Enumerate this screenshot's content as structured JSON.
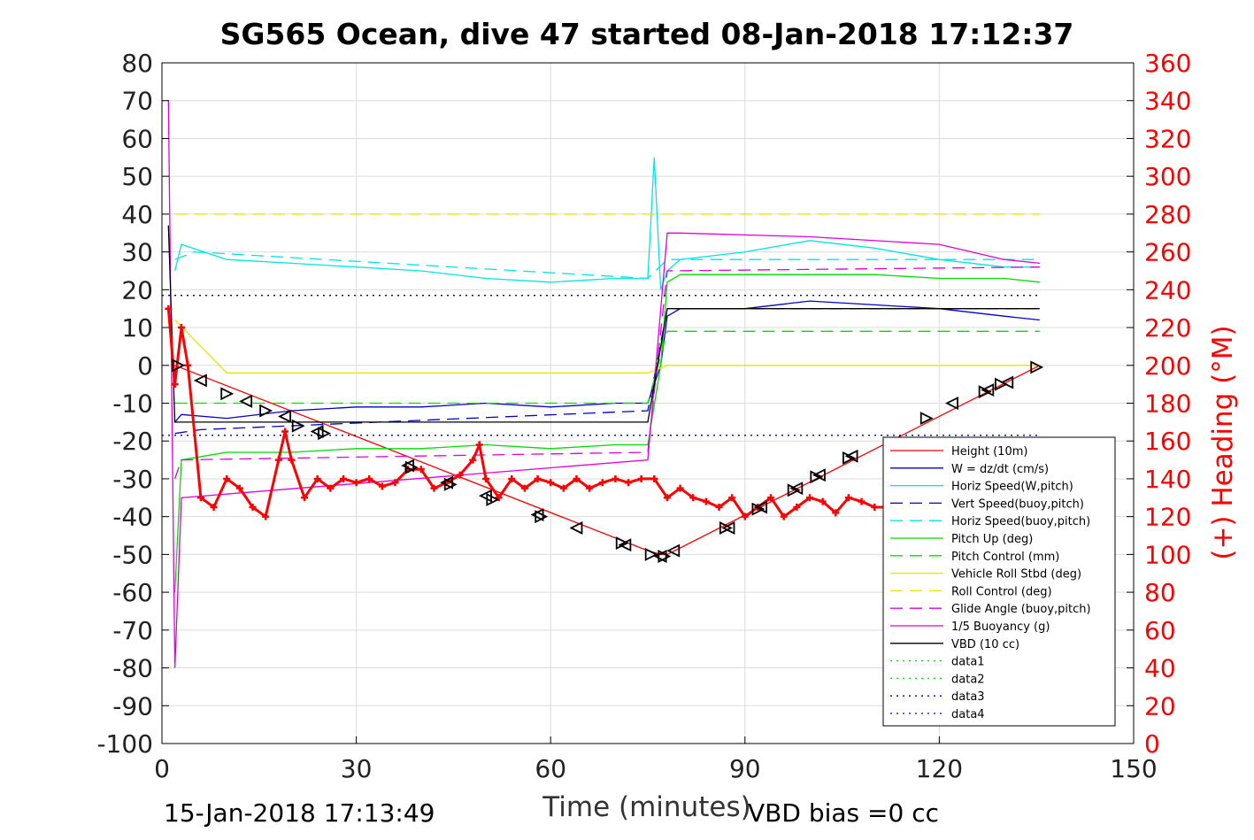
{
  "chart_data": {
    "type": "line",
    "title": "SG565 Ocean, dive 47 started 08-Jan-2018 17:12:37",
    "xlabel": "Time (minutes)",
    "ylabel_right": "(+) Heading (°M)",
    "footer_left": "15-Jan-2018 17:13:49",
    "footer_right": "VBD bias =0 cc",
    "xlim": [
      0,
      150
    ],
    "ylim_left": [
      -100,
      80
    ],
    "ylim_right": [
      0,
      360
    ],
    "xticks": [
      0,
      30,
      60,
      90,
      120,
      150
    ],
    "yticks_left": [
      80,
      70,
      60,
      50,
      40,
      30,
      20,
      10,
      0,
      -10,
      -20,
      -30,
      -40,
      -50,
      -60,
      -70,
      -80,
      -90,
      -100
    ],
    "yticks_right": [
      360,
      340,
      320,
      300,
      280,
      260,
      240,
      220,
      200,
      180,
      160,
      140,
      120,
      100,
      80,
      60,
      40,
      20,
      0
    ],
    "grid": true,
    "legend_position": "bottom-right",
    "legend": [
      {
        "name": "Height (10m)",
        "color": "#ff0000",
        "style": "solid"
      },
      {
        "name": "W = dz/dt (cm/s)",
        "color": "#0000cc",
        "style": "solid"
      },
      {
        "name": "Horiz Speed(W,pitch)",
        "color": "#00e5e5",
        "style": "solid"
      },
      {
        "name": "Vert Speed(buoy,pitch)",
        "color": "#0000cc",
        "style": "dashed"
      },
      {
        "name": "Horiz Speed(buoy,pitch)",
        "color": "#00e5e5",
        "style": "dashed"
      },
      {
        "name": "Pitch Up (deg)",
        "color": "#00dd00",
        "style": "solid"
      },
      {
        "name": "Pitch Control (mm)",
        "color": "#00dd00",
        "style": "dashed"
      },
      {
        "name": "Vehicle Roll Stbd (deg)",
        "color": "#e5e500",
        "style": "solid"
      },
      {
        "name": "Roll Control (deg)",
        "color": "#e5e500",
        "style": "dashed"
      },
      {
        "name": "Glide Angle (buoy,pitch)",
        "color": "#dd00dd",
        "style": "dashed"
      },
      {
        "name": "1/5 Buoyancy (g)",
        "color": "#dd00dd",
        "style": "solid"
      },
      {
        "name": "VBD (10 cc)",
        "color": "#000000",
        "style": "solid"
      },
      {
        "name": "data1",
        "color": "#00dd00",
        "style": "dotted"
      },
      {
        "name": "data2",
        "color": "#00dd00",
        "style": "dotted"
      },
      {
        "name": "data3",
        "color": "#000088",
        "style": "dotted"
      },
      {
        "name": "data4",
        "color": "#0000cc",
        "style": "dotted"
      }
    ],
    "series": [
      {
        "name": "Height (10m)",
        "axis": "left",
        "x": [
          2,
          75,
          77,
          78,
          135.5
        ],
        "y": [
          0,
          -49,
          -50,
          -50,
          0
        ]
      },
      {
        "name": "W = dz/dt (cm/s)",
        "axis": "left",
        "x": [
          2,
          3,
          10,
          20,
          30,
          40,
          50,
          60,
          70,
          75,
          77,
          78,
          80,
          90,
          100,
          110,
          120,
          130,
          135.5
        ],
        "y": [
          -15,
          -13,
          -14,
          -12,
          -11,
          -11,
          -10,
          -11,
          -10,
          -10,
          0,
          13,
          15,
          15,
          17,
          16,
          15,
          13,
          12
        ]
      },
      {
        "name": "Horiz Speed(W,pitch)",
        "axis": "left",
        "x": [
          2,
          3,
          10,
          20,
          30,
          40,
          50,
          60,
          70,
          75,
          76,
          77,
          78,
          80,
          90,
          100,
          110,
          120,
          130,
          135.5
        ],
        "y": [
          25,
          32,
          28,
          27,
          26,
          25,
          23,
          22,
          23,
          23,
          55,
          20,
          25,
          28,
          30,
          33,
          31,
          28,
          26,
          26
        ]
      },
      {
        "name": "Vert Speed(buoy,pitch)",
        "axis": "left",
        "x": [
          2,
          6,
          75,
          78,
          135.5
        ],
        "y": [
          -18,
          -17,
          -12,
          15,
          15
        ]
      },
      {
        "name": "Horiz Speed(buoy,pitch)",
        "axis": "left",
        "x": [
          2,
          5,
          75,
          78,
          135.5
        ],
        "y": [
          28,
          30,
          23,
          28,
          28
        ]
      },
      {
        "name": "Pitch Up (deg)",
        "axis": "left",
        "x": [
          2,
          3,
          10,
          20,
          30,
          40,
          50,
          60,
          70,
          75,
          77,
          78,
          80,
          90,
          100,
          110,
          120,
          130,
          135.5
        ],
        "y": [
          -60,
          -25,
          -23,
          -23,
          -22,
          -22,
          -21,
          -22,
          -21,
          -21,
          0,
          22,
          24,
          24,
          24,
          24,
          23,
          23,
          22
        ]
      },
      {
        "name": "Pitch Control (mm)",
        "axis": "left",
        "x": [
          2,
          75,
          78,
          135.5
        ],
        "y": [
          -10,
          -10,
          9,
          9
        ]
      },
      {
        "name": "Vehicle Roll Stbd (deg)",
        "axis": "left",
        "x": [
          2,
          10,
          20,
          30,
          40,
          50,
          60,
          70,
          75,
          78,
          90,
          100,
          110,
          120,
          130,
          135.5
        ],
        "y": [
          12,
          -2,
          -2,
          -2,
          -2,
          -2,
          -2,
          -2,
          -2,
          0,
          0,
          0,
          0,
          0,
          0,
          0
        ]
      },
      {
        "name": "Roll Control (deg)",
        "axis": "left",
        "x": [
          2,
          135.5
        ],
        "y": [
          40,
          40
        ]
      },
      {
        "name": "Glide Angle (buoy,pitch)",
        "axis": "left",
        "x": [
          2,
          3,
          75,
          78,
          135.5
        ],
        "y": [
          -30,
          -25,
          -23,
          25,
          26
        ]
      },
      {
        "name": "1/5 Buoyancy (g)",
        "axis": "left",
        "x": [
          1,
          2,
          3,
          75,
          78,
          80,
          100,
          120,
          130,
          135.5
        ],
        "y": [
          70,
          -80,
          -35,
          -25,
          35,
          35,
          34,
          32,
          28,
          27
        ]
      },
      {
        "name": "VBD (10 cc)",
        "axis": "left",
        "x": [
          1,
          2,
          3,
          75,
          78,
          135.5
        ],
        "y": [
          37,
          -15,
          -15,
          -15,
          15,
          15
        ]
      },
      {
        "name": "data1",
        "axis": "left",
        "x": [
          0,
          135.5
        ],
        "y": [
          18.5,
          18.5
        ]
      },
      {
        "name": "data2",
        "axis": "left",
        "x": [
          0,
          135.5
        ],
        "y": [
          -18.5,
          -18.5
        ]
      },
      {
        "name": "data3",
        "axis": "left",
        "x": [
          0,
          135.5
        ],
        "y": [
          18.5,
          18.5
        ]
      },
      {
        "name": "data4",
        "axis": "left",
        "x": [
          0,
          135.5
        ],
        "y": [
          -18.5,
          -18.5
        ]
      },
      {
        "name": "Heading",
        "axis": "right",
        "x": [
          1,
          2,
          3,
          4,
          6,
          8,
          10,
          12,
          14,
          16,
          18,
          19,
          20,
          22,
          24,
          26,
          28,
          30,
          32,
          34,
          36,
          38,
          40,
          42,
          44,
          46,
          48,
          49,
          50,
          52,
          54,
          56,
          58,
          60,
          62,
          64,
          66,
          68,
          70,
          72,
          74,
          76,
          78,
          80,
          82,
          84,
          86,
          88,
          90,
          92,
          94,
          96,
          98,
          100,
          102,
          104,
          106,
          108,
          110,
          112
        ],
        "y": [
          230,
          190,
          220,
          200,
          130,
          125,
          140,
          135,
          125,
          120,
          150,
          165,
          150,
          130,
          140,
          135,
          140,
          138,
          140,
          136,
          138,
          145,
          145,
          135,
          138,
          142,
          150,
          158,
          140,
          130,
          140,
          135,
          140,
          138,
          135,
          140,
          135,
          138,
          140,
          138,
          140,
          140,
          130,
          135,
          130,
          128,
          125,
          130,
          120,
          125,
          130,
          120,
          125,
          130,
          128,
          122,
          130,
          128,
          125,
          125
        ]
      }
    ],
    "markers": {
      "name": "Height (10m)",
      "x": [
        2.5,
        6,
        10,
        13,
        16,
        19,
        21,
        24,
        25,
        38,
        38.5,
        44,
        44.5,
        50,
        51,
        58,
        58.5,
        64,
        71,
        71.5,
        75.5,
        77,
        77.5,
        79,
        87,
        87.5,
        92,
        92.5,
        97.5,
        98,
        101,
        101.5,
        106,
        106.5,
        118,
        122,
        127,
        127.5,
        129.5,
        130.5,
        135
      ],
      "y": [
        0,
        -4,
        -7.5,
        -9.5,
        -12,
        -13.5,
        -16,
        -17.5,
        -18,
        -26.5,
        -27,
        -31,
        -31.5,
        -34.5,
        -35.5,
        -39.5,
        -40,
        -43,
        -47,
        -47.5,
        -50,
        -50.5,
        -50.5,
        -49,
        -43,
        -43,
        -38,
        -37.5,
        -33,
        -32.5,
        -29.5,
        -29,
        -24.5,
        -24,
        -14,
        -10,
        -7,
        -6.5,
        -5,
        -4.5,
        -0.5
      ]
    }
  }
}
